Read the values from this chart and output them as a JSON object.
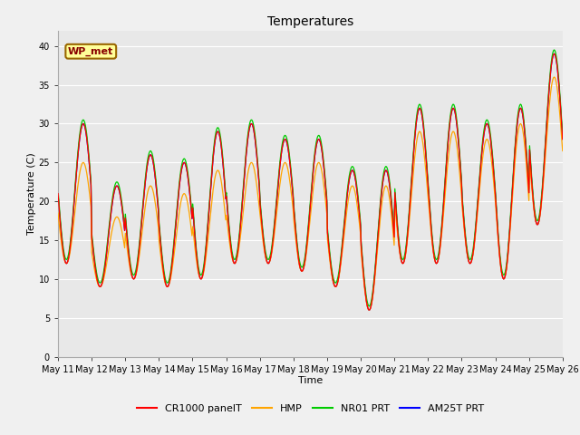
{
  "title": "Temperatures",
  "xlabel": "Time",
  "ylabel": "Temperature (C)",
  "ylim": [
    0,
    42
  ],
  "yticks": [
    0,
    5,
    10,
    15,
    20,
    25,
    30,
    35,
    40
  ],
  "series_labels": [
    "CR1000 panelT",
    "HMP",
    "NR01 PRT",
    "AM25T PRT"
  ],
  "series_colors": [
    "#ff0000",
    "#ffa500",
    "#00cc00",
    "#0000ff"
  ],
  "background_color": "#e8e8e8",
  "fig_facecolor": "#f0f0f0",
  "annotation_text": "WP_met",
  "annotation_bg": "#ffff99",
  "annotation_border": "#996600",
  "annotation_text_color": "#880000",
  "title_fontsize": 10,
  "axis_label_fontsize": 8,
  "tick_label_fontsize": 7,
  "legend_fontsize": 8,
  "n_days": 15,
  "start_day": 11,
  "daily_peaks_cr1000": [
    30,
    22,
    26,
    25,
    29,
    30,
    28,
    28,
    24,
    24,
    32,
    32,
    30,
    32,
    39
  ],
  "daily_troughs_cr1000": [
    12,
    9,
    10,
    9,
    10,
    12,
    12,
    11,
    9,
    6,
    12,
    12,
    12,
    10,
    17
  ],
  "hmp_peak_offsets": [
    -5,
    -4,
    -4,
    -4,
    -5,
    -5,
    -3,
    -3,
    -2,
    -2,
    -3,
    -3,
    -2,
    -2,
    -3
  ],
  "hmp_trough_offsets": [
    0,
    0,
    0,
    0,
    0,
    0,
    0,
    0,
    0,
    0,
    0,
    0,
    0,
    0,
    0
  ],
  "nr01_peak_offsets": [
    0,
    0,
    0,
    0,
    0,
    0,
    0,
    0,
    0,
    0,
    0,
    0,
    0,
    0,
    0
  ],
  "nr01_trough_offsets": [
    0,
    0,
    0,
    0,
    0,
    0,
    0,
    0,
    0,
    0,
    0,
    0,
    0,
    0,
    0
  ],
  "am25t_peak_offsets": [
    0,
    0,
    0,
    0,
    0,
    0,
    0,
    0,
    0,
    0,
    0,
    0,
    0,
    0,
    0
  ],
  "am25t_trough_offsets": [
    0,
    0,
    0,
    0,
    0,
    0,
    0,
    0,
    0,
    0,
    0,
    0,
    0,
    0,
    0
  ]
}
